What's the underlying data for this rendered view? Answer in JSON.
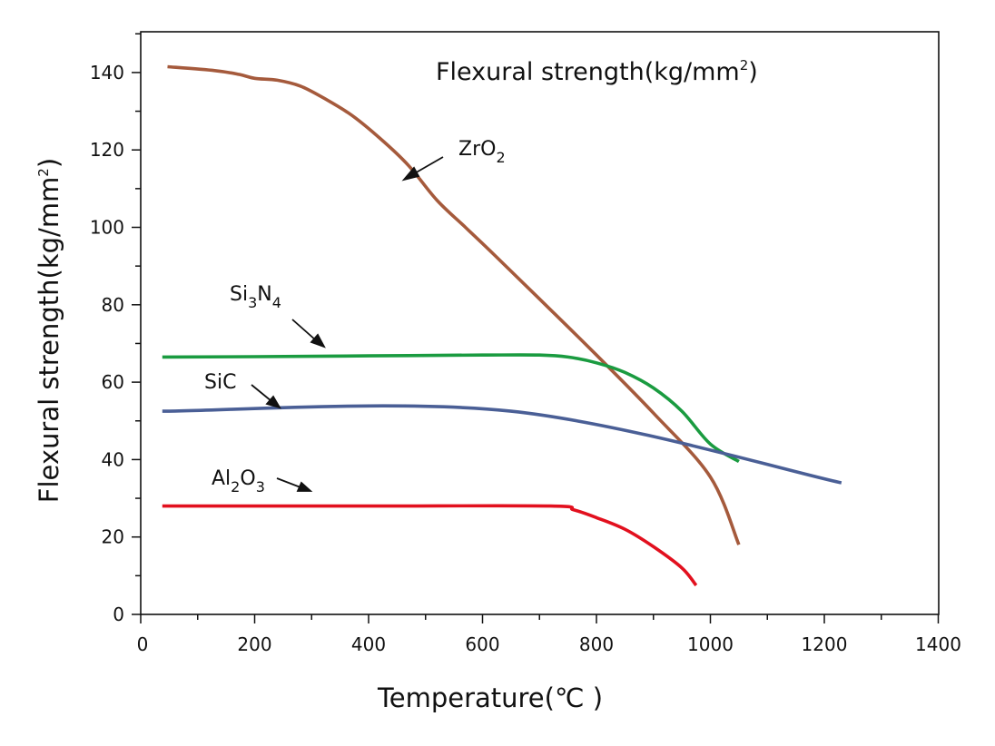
{
  "chart_data": {
    "type": "line",
    "title": {
      "main": "Flexural strength(kg/mm",
      "sup": "2",
      "close": ")"
    },
    "xlabel": "Temperature(℃ )",
    "ylabel": {
      "main": "Flexural strength(kg/mm",
      "sup": "2",
      "close": ")"
    },
    "xlim": [
      0,
      1400
    ],
    "ylim": [
      0,
      150
    ],
    "x_ticks": [
      0,
      200,
      400,
      600,
      800,
      1000,
      1200,
      1400
    ],
    "x_tick_labels": [
      "0",
      "200",
      "400",
      "600",
      "800",
      "1000",
      "1200",
      "1400"
    ],
    "y_ticks": [
      0,
      20,
      40,
      60,
      80,
      100,
      120,
      140
    ],
    "y_tick_labels": [
      "0",
      "20",
      "40",
      "60",
      "80",
      "100",
      "120",
      "140"
    ],
    "grid": false,
    "series": [
      {
        "name": "ZrO2",
        "label": {
          "base": "ZrO",
          "sub": "2"
        },
        "color": "#a55a3c",
        "x": [
          47,
          130,
          173,
          200,
          240,
          280,
          320,
          370,
          420,
          470,
          520,
          570,
          620,
          700,
          800,
          900,
          1000,
          1050
        ],
        "y": [
          141.5,
          140.5,
          139.5,
          138.5,
          138,
          136.5,
          133.5,
          129,
          123,
          116,
          107,
          100,
          93,
          81.5,
          67,
          52,
          35.5,
          18
        ]
      },
      {
        "name": "Si3N4",
        "label": {
          "base1": "Si",
          "sub1": "3",
          "base2": "N",
          "sub2": "4"
        },
        "color": "#1a9b40",
        "x": [
          38,
          200,
          400,
          600,
          700,
          750,
          800,
          850,
          900,
          950,
          1000,
          1050
        ],
        "y": [
          66.5,
          66.6,
          66.8,
          67,
          67,
          66.5,
          65,
          62.5,
          58.5,
          52.5,
          44,
          39.5
        ]
      },
      {
        "name": "SiC",
        "label": {
          "base": "SiC"
        },
        "color": "#4a5f96",
        "x": [
          38,
          650,
          1230
        ],
        "y": [
          52.5,
          52.5,
          34
        ]
      },
      {
        "name": "Al2O3",
        "label": {
          "base1": "Al",
          "sub1": "2",
          "base2": "O",
          "sub2": "3"
        },
        "color": "#e2101e",
        "x": [
          38,
          400,
          720,
          760,
          800,
          850,
          900,
          950,
          975
        ],
        "y": [
          28,
          28,
          28,
          27,
          25,
          22,
          17.5,
          12,
          7.5
        ]
      }
    ]
  }
}
